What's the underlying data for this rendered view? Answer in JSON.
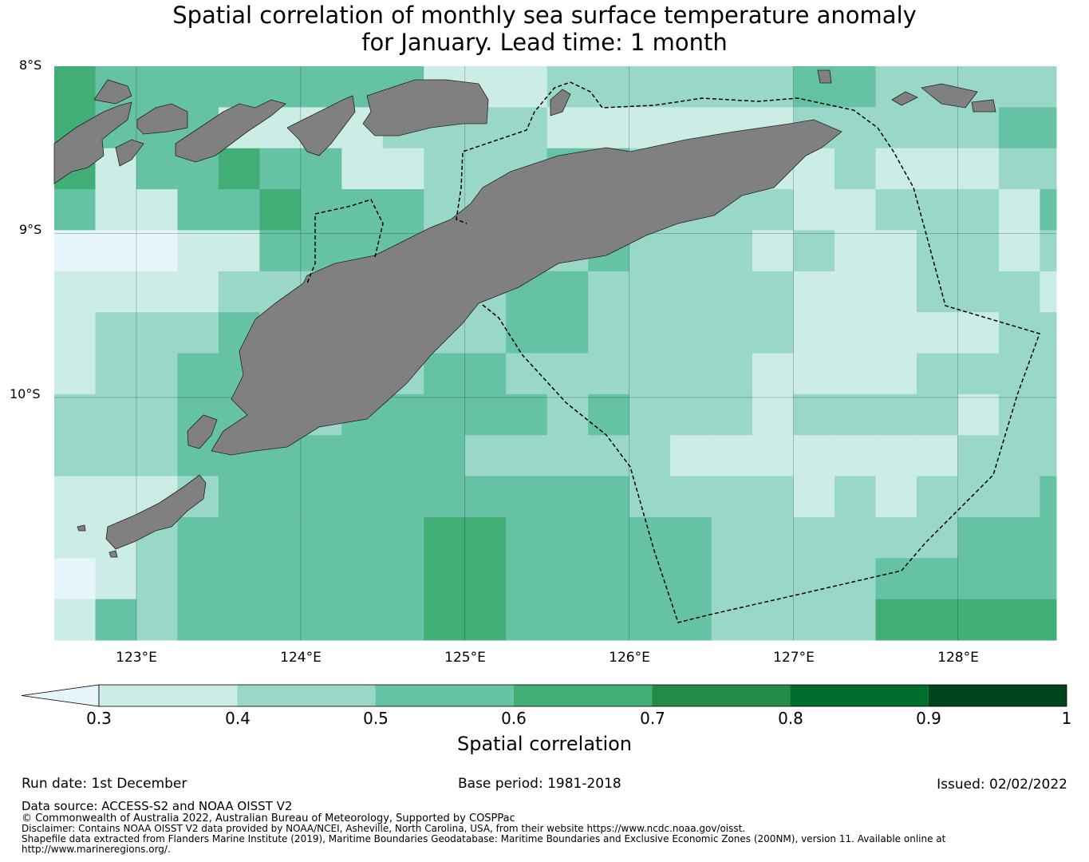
{
  "title": {
    "line1": "Spatial correlation of monthly sea surface temperature anomaly",
    "line2": "for January. Lead time: 1 month"
  },
  "map": {
    "lat_labels": [
      "8°S",
      "9°S",
      "10°S"
    ],
    "lon_labels": [
      "123°E",
      "124°E",
      "125°E",
      "126°E",
      "127°E",
      "128°E"
    ],
    "land_color": "#808080",
    "boundary_style": "dashed"
  },
  "colorbar": {
    "label": "Spatial correlation",
    "ticks": [
      "0.3",
      "0.4",
      "0.5",
      "0.6",
      "0.7",
      "0.8",
      "0.9",
      "1"
    ],
    "colors": [
      "#e5f5f9",
      "#ccece6",
      "#99d8c9",
      "#66c2a4",
      "#41ae76",
      "#238b45",
      "#006d2c",
      "#00441b"
    ],
    "extend": "min"
  },
  "footer": {
    "run_date": "Run date: 1st December",
    "base_period": "Base period: 1981-2018",
    "issued": "Issued: 02/02/2022",
    "data_source": "Data source: ACCESS-S2 and NOAA OISST V2",
    "copyright": "© Commonwealth of Australia 2022, Australian Bureau of Meteorology, Supported by COSPPac",
    "disclaimer": "Disclaimer: Contains NOAA OISST V2 data provided by NOAA/NCEI, Asheville, North Carolina, USA, from their website https://www.ncdc.noaa.gov/oisst.",
    "shapefile_1": "Shapefile data extracted from Flanders Marine Institute (2019), Maritime Boundaries Geodatabase: Maritime Boundaries and Exclusive Economic Zones (200NM), version 11. Available online at",
    "shapefile_2": "http://www.marineregions.org/."
  }
}
